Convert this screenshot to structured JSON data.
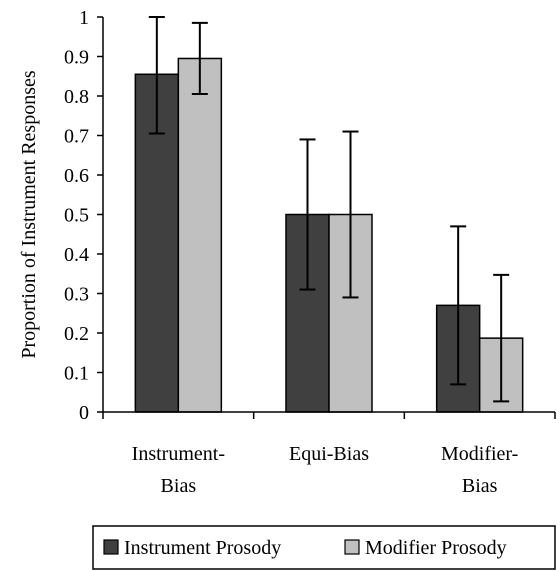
{
  "chart_data": {
    "type": "bar",
    "ylabel": "Proportion of Instrument Responses",
    "xlabel": "",
    "ylim": [
      0,
      1
    ],
    "yticks": [
      "0",
      "0.1",
      "0.2",
      "0.3",
      "0.4",
      "0.5",
      "0.6",
      "0.7",
      "0.8",
      "0.9",
      "1"
    ],
    "grid": false,
    "legend": "bottom",
    "categories": [
      [
        "Instrument-",
        "Bias"
      ],
      [
        "Equi-Bias"
      ],
      [
        "Modifier-",
        "Bias"
      ]
    ],
    "series": [
      {
        "name": "Instrument Prosody",
        "color": "#404040",
        "values": [
          0.855,
          0.5,
          0.27
        ],
        "error_low": [
          0.705,
          0.31,
          0.07
        ],
        "error_high": [
          1.0,
          0.69,
          0.47
        ]
      },
      {
        "name": "Modifier Prosody",
        "color": "#c0c0c0",
        "values": [
          0.895,
          0.5,
          0.187
        ],
        "error_low": [
          0.805,
          0.29,
          0.027
        ],
        "error_high": [
          0.985,
          0.71,
          0.347
        ]
      }
    ]
  }
}
